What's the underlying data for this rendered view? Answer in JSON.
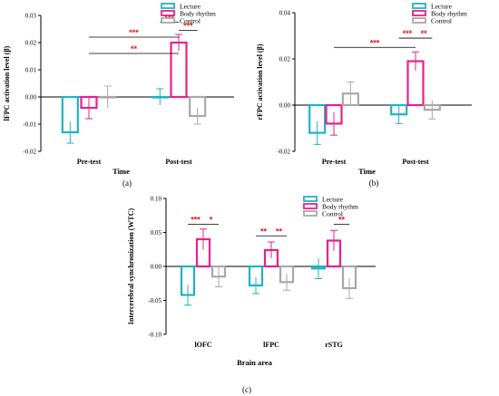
{
  "colors": {
    "lecture": "#1fb3c4",
    "body_rhythm": "#e8208c",
    "control": "#a8a8a8",
    "sig": "#e8141c"
  },
  "chart_data": [
    {
      "id": "a",
      "type": "bar",
      "panel_label": "(a)",
      "ylabel": "lFPC activation level (β)",
      "xlabel": "Time",
      "categories": [
        "Pre-test",
        "Post-test"
      ],
      "ylim": [
        -0.02,
        0.03
      ],
      "yticks": [
        -0.02,
        -0.01,
        0.0,
        0.01,
        0.02,
        0.03
      ],
      "ytick_labels": [
        "-0.02",
        "-0.01",
        "0.00",
        "0.01",
        "0.02",
        "0.03"
      ],
      "legend": {
        "position": "top-right",
        "entries": [
          "Lecture",
          "Body rhythm",
          "Control"
        ]
      },
      "series": [
        {
          "name": "Lecture",
          "values": [
            -0.013,
            0.0
          ],
          "err": [
            0.004,
            0.003
          ]
        },
        {
          "name": "Body rhythm",
          "values": [
            -0.004,
            0.02
          ],
          "err": [
            0.004,
            0.003
          ]
        },
        {
          "name": "Control",
          "values": [
            0.0,
            -0.007
          ],
          "err": [
            0.004,
            0.003
          ]
        }
      ],
      "significance": [
        {
          "from": [
            0,
            1
          ],
          "to": [
            1,
            1
          ],
          "y": 0.016,
          "label": "**"
        },
        {
          "from": [
            0,
            1
          ],
          "to": [
            1,
            1
          ],
          "y": 0.022,
          "label": "***"
        },
        {
          "from": [
            1,
            0
          ],
          "to": [
            1,
            1
          ],
          "y": 0.0275,
          "label": "***"
        },
        {
          "from": [
            1,
            1
          ],
          "to": [
            1,
            2
          ],
          "y": 0.0245,
          "label": "***"
        }
      ]
    },
    {
      "id": "b",
      "type": "bar",
      "panel_label": "(b)",
      "ylabel": "rFPC activation level (β)",
      "xlabel": "Time",
      "categories": [
        "Pre-test",
        "Post-test"
      ],
      "ylim": [
        -0.02,
        0.04
      ],
      "yticks": [
        -0.02,
        0.0,
        0.02,
        0.04
      ],
      "ytick_labels": [
        "-0.02",
        "0.00",
        "0.02",
        "0.04"
      ],
      "legend": {
        "position": "top-right",
        "entries": [
          "Lecture",
          "Body rhythm",
          "Control"
        ]
      },
      "series": [
        {
          "name": "Lecture",
          "values": [
            -0.012,
            -0.004
          ],
          "err": [
            0.005,
            0.004
          ]
        },
        {
          "name": "Body rhythm",
          "values": [
            -0.008,
            0.019
          ],
          "err": [
            0.005,
            0.004
          ]
        },
        {
          "name": "Control",
          "values": [
            0.005,
            -0.002
          ],
          "err": [
            0.005,
            0.004
          ]
        }
      ],
      "significance": [
        {
          "from": [
            0,
            1
          ],
          "to": [
            1,
            1
          ],
          "y": 0.025,
          "label": "***"
        },
        {
          "from": [
            1,
            0
          ],
          "to": [
            1,
            1
          ],
          "y": 0.029,
          "label": "***"
        },
        {
          "from": [
            1,
            1
          ],
          "to": [
            1,
            2
          ],
          "y": 0.029,
          "label": "**"
        }
      ]
    },
    {
      "id": "c",
      "type": "bar",
      "panel_label": "(c)",
      "ylabel": "Intercerebral synchronization (WTC)",
      "xlabel": "Brain area",
      "categories": [
        "lOFC",
        "lFPC",
        "rSTG"
      ],
      "ylim": [
        -0.1,
        0.1
      ],
      "yticks": [
        -0.1,
        -0.05,
        0.0,
        0.05,
        0.1
      ],
      "ytick_labels": [
        "-0.10",
        "-0.05",
        "0.00",
        "0.05",
        "0.10"
      ],
      "legend": {
        "position": "top-right",
        "entries": [
          "Lecture",
          "Body rhythm",
          "Control"
        ]
      },
      "series": [
        {
          "name": "Lecture",
          "values": [
            -0.042,
            -0.028,
            -0.003
          ],
          "err": [
            0.015,
            0.012,
            0.015
          ]
        },
        {
          "name": "Body rhythm",
          "values": [
            0.04,
            0.024,
            0.038
          ],
          "err": [
            0.015,
            0.012,
            0.015
          ]
        },
        {
          "name": "Control",
          "values": [
            -0.015,
            -0.023,
            -0.032
          ],
          "err": [
            0.015,
            0.012,
            0.015
          ]
        }
      ],
      "significance": [
        {
          "from": [
            0,
            0
          ],
          "to": [
            0,
            1
          ],
          "y": 0.062,
          "label": "***"
        },
        {
          "from": [
            0,
            1
          ],
          "to": [
            0,
            2
          ],
          "y": 0.062,
          "label": "*"
        },
        {
          "from": [
            1,
            0
          ],
          "to": [
            1,
            1
          ],
          "y": 0.045,
          "label": "**"
        },
        {
          "from": [
            1,
            1
          ],
          "to": [
            1,
            2
          ],
          "y": 0.045,
          "label": "**"
        },
        {
          "from": [
            2,
            1
          ],
          "to": [
            2,
            2
          ],
          "y": 0.062,
          "label": "**"
        }
      ]
    }
  ]
}
